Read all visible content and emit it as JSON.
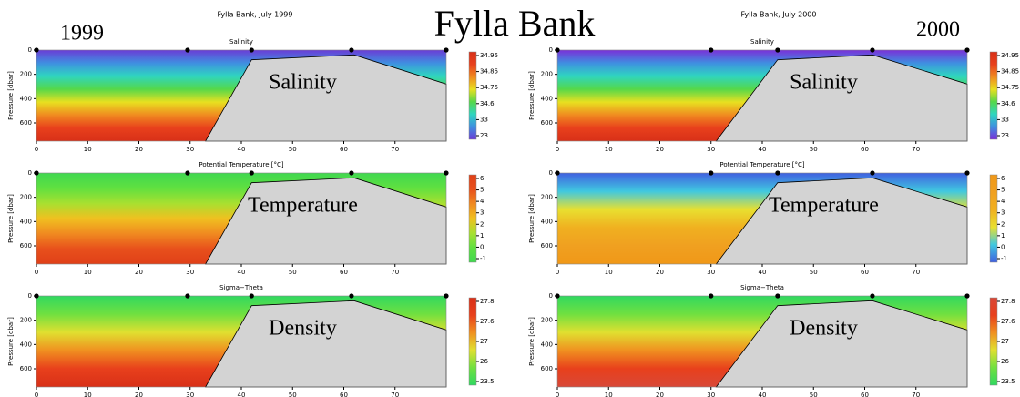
{
  "figure": {
    "title": "Fylla Bank",
    "years": [
      "1999",
      "2000"
    ],
    "panel_titles": [
      "Fylla Bank, July 1999",
      "Fylla Bank, July 2000"
    ]
  },
  "chart_data": [
    {
      "type": "contour",
      "subtitle": "Salinity",
      "annotation": "Salinity",
      "ylabel": "Pressure [dbar]",
      "xlim": [
        0,
        80
      ],
      "ylim": [
        750,
        0
      ],
      "xticks": [
        0,
        10,
        20,
        30,
        40,
        50,
        60,
        70
      ],
      "yticks": [
        0,
        200,
        400,
        600
      ],
      "colorbar_ticks": [
        34.95,
        34.85,
        34.75,
        34.6,
        33,
        23
      ],
      "colors": [
        "#6a3cd6",
        "#3f8fe0",
        "#2fd5c0",
        "#55d84a",
        "#e8e020",
        "#f08a20",
        "#e8401c",
        "#d83018"
      ],
      "stations": [
        0,
        29.5,
        42,
        61.5,
        80
      ],
      "bottom": {
        "x": [
          33,
          42,
          62,
          80
        ],
        "y": [
          750,
          80,
          40,
          280
        ]
      }
    },
    {
      "type": "contour",
      "subtitle": "Salinity",
      "annotation": "Salinity",
      "ylabel": "Pressure [dbar]",
      "xlim": [
        0,
        80
      ],
      "ylim": [
        750,
        0
      ],
      "xticks": [
        0,
        10,
        20,
        30,
        40,
        50,
        60,
        70
      ],
      "yticks": [
        0,
        200,
        400,
        600
      ],
      "colorbar_ticks": [
        34.95,
        34.85,
        34.75,
        34.6,
        33,
        23
      ],
      "colors": [
        "#7a30d8",
        "#3f8fe0",
        "#2fd5c0",
        "#55d84a",
        "#e8e020",
        "#f08a20",
        "#e8401c",
        "#d83018"
      ],
      "stations": [
        0,
        30,
        43,
        61.5,
        80
      ],
      "bottom": {
        "x": [
          31,
          43,
          61.5,
          80
        ],
        "y": [
          750,
          80,
          40,
          280
        ]
      }
    },
    {
      "type": "contour",
      "subtitle": "Potential Temperature [°C]",
      "annotation": "Temperature",
      "ylabel": "Pressure [dbar]",
      "xlim": [
        0,
        80
      ],
      "ylim": [
        750,
        0
      ],
      "xticks": [
        0,
        10,
        20,
        30,
        40,
        50,
        60,
        70
      ],
      "yticks": [
        0,
        200,
        400,
        600
      ],
      "colorbar_ticks": [
        6,
        5,
        4,
        3,
        2,
        1,
        0,
        -1
      ],
      "colors": [
        "#40d850",
        "#60e040",
        "#a8e030",
        "#f0c020",
        "#f08a20",
        "#e8501c",
        "#e04018"
      ],
      "stations": [
        0,
        29.5,
        42,
        61.5,
        80
      ],
      "bottom": {
        "x": [
          33,
          42,
          62,
          80
        ],
        "y": [
          750,
          80,
          40,
          280
        ]
      }
    },
    {
      "type": "contour",
      "subtitle": "Potential Temperature [°C]",
      "annotation": "Temperature",
      "ylabel": "Pressure [dbar]",
      "xlim": [
        0,
        80
      ],
      "ylim": [
        750,
        0
      ],
      "xticks": [
        0,
        10,
        20,
        30,
        40,
        50,
        60,
        70
      ],
      "yticks": [
        0,
        200,
        400,
        600
      ],
      "colorbar_ticks": [
        6,
        5,
        4,
        3,
        2,
        1,
        0,
        -1
      ],
      "colors": [
        "#4060e0",
        "#40c8e0",
        "#e8e030",
        "#f0b020",
        "#f0a020",
        "#f09818"
      ],
      "stations": [
        0,
        30,
        43,
        61.5,
        80
      ],
      "bottom": {
        "x": [
          31,
          43,
          61.5,
          80
        ],
        "y": [
          750,
          80,
          40,
          280
        ]
      }
    },
    {
      "type": "contour",
      "subtitle": "Sigma−Theta",
      "annotation": "Density",
      "ylabel": "Pressure [dbar]",
      "xlim": [
        0,
        80
      ],
      "ylim": [
        750,
        0
      ],
      "xticks": [
        0,
        10,
        20,
        30,
        40,
        50,
        60,
        70
      ],
      "yticks": [
        0,
        200,
        400,
        600
      ],
      "colorbar_ticks": [
        27.8,
        27.6,
        27,
        26,
        23.5
      ],
      "colors": [
        "#30d860",
        "#70e040",
        "#e0e030",
        "#f09020",
        "#e8401c",
        "#d83018"
      ],
      "stations": [
        0,
        29.5,
        42,
        61.5,
        80
      ],
      "bottom": {
        "x": [
          33,
          42,
          62,
          80
        ],
        "y": [
          750,
          80,
          40,
          280
        ]
      }
    },
    {
      "type": "contour",
      "subtitle": "Sigma−Theta",
      "annotation": "Density",
      "ylabel": "Pressure [dbar]",
      "xlim": [
        0,
        80
      ],
      "ylim": [
        750,
        0
      ],
      "xticks": [
        0,
        10,
        20,
        30,
        40,
        50,
        60,
        70
      ],
      "yticks": [
        0,
        200,
        400,
        600
      ],
      "colorbar_ticks": [
        27.8,
        27.6,
        27,
        26,
        23.5
      ],
      "colors": [
        "#30d860",
        "#70e040",
        "#e0e030",
        "#f09020",
        "#e8401c",
        "#d84838"
      ],
      "stations": [
        0,
        30,
        43,
        61.5,
        80
      ],
      "bottom": {
        "x": [
          31,
          43,
          61.5,
          80
        ],
        "y": [
          750,
          80,
          40,
          280
        ]
      }
    }
  ]
}
